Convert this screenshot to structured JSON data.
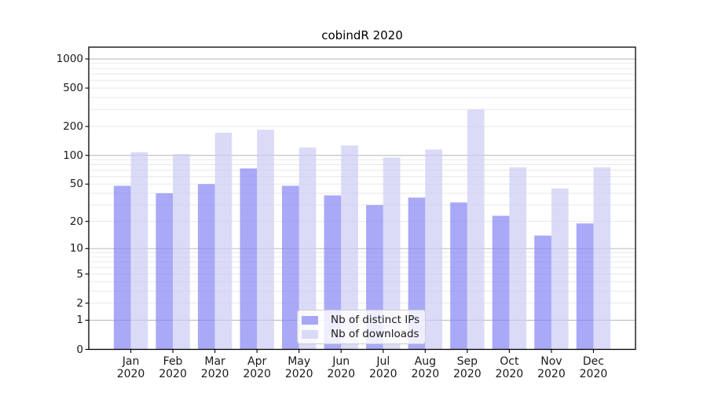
{
  "chart_data": {
    "type": "bar",
    "title": "cobindR 2020",
    "year": "2020",
    "categories": [
      "Jan",
      "Feb",
      "Mar",
      "Apr",
      "May",
      "Jun",
      "Jul",
      "Aug",
      "Sep",
      "Oct",
      "Nov",
      "Dec"
    ],
    "series": [
      {
        "name": "Nb of distinct IPs",
        "color": "#8585F5",
        "values": [
          48,
          40,
          50,
          73,
          48,
          38,
          30,
          36,
          32,
          23,
          14,
          19
        ]
      },
      {
        "name": "Nb of downloads",
        "color": "#CCCCF5",
        "values": [
          108,
          103,
          172,
          185,
          121,
          127,
          95,
          115,
          300,
          75,
          45,
          75
        ]
      }
    ],
    "bar_alpha": 0.7,
    "yticks": [
      1000,
      500,
      200,
      100,
      50,
      20,
      10,
      5,
      2,
      1,
      0
    ],
    "scale": "log1p",
    "ylim": [
      0,
      1310
    ],
    "grid": true,
    "legend_position": "inside lower-center",
    "colors": {
      "major_grid": "#BDBDBD",
      "minor_grid": "#E8E8E8",
      "axis": "#000000",
      "text": "#1A1A1A",
      "legend_border": "#CCCCCC",
      "legend_bg": "#FFFFFF"
    }
  }
}
